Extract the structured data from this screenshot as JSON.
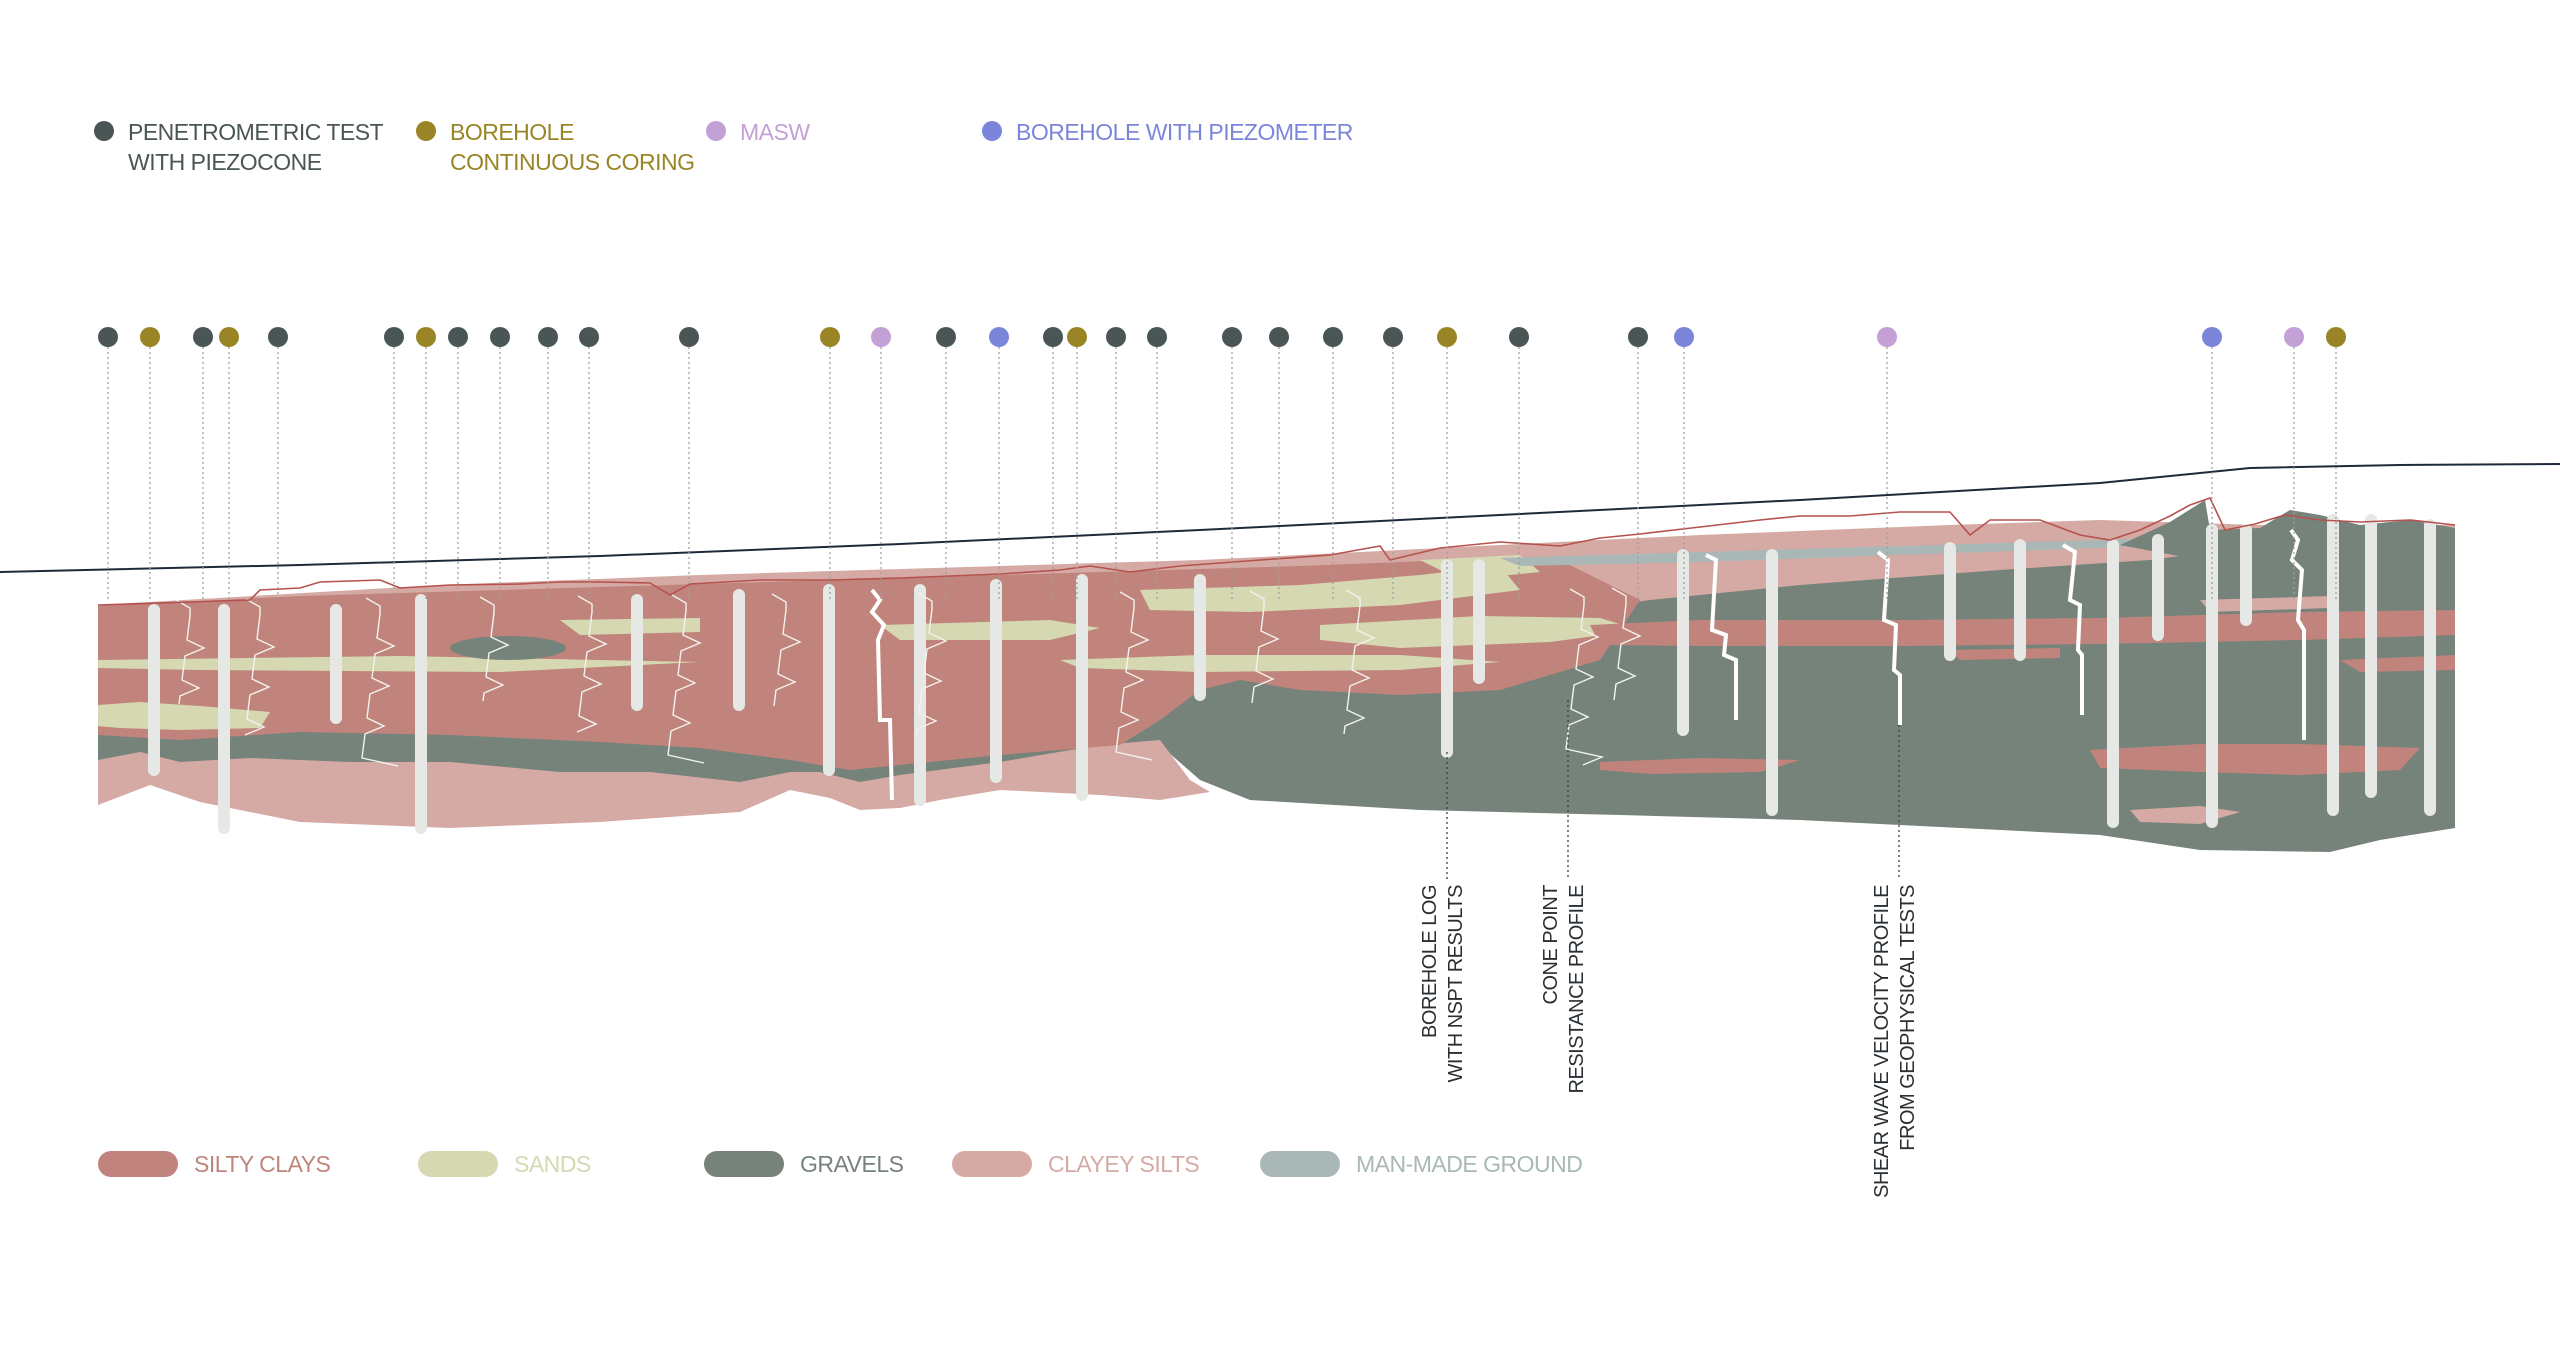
{
  "colors": {
    "penetrometric": "#4a5556",
    "borehole_coring": "#9a8526",
    "masw": "#c3a0d6",
    "piezometer": "#7b86db",
    "silty_clays": "#c0847c",
    "sands": "#d6d8b2",
    "gravels": "#76837a",
    "clayey_silts": "#d6aaa4",
    "man_made_ground": "#a9b8b6",
    "surface_line": "#1f2a38",
    "red_line": "#b5524e",
    "probe": "#e6e8e6"
  },
  "top_legend": [
    {
      "id": "penetrometric",
      "lines": [
        "PENETROMETRIC TEST",
        "WITH PIEZOCONE"
      ]
    },
    {
      "id": "borehole_coring",
      "lines": [
        "BOREHOLE",
        "CONTINUOUS CORING"
      ]
    },
    {
      "id": "masw",
      "lines": [
        "MASW"
      ]
    },
    {
      "id": "piezometer",
      "lines": [
        "BOREHOLE WITH PIEZOMETER"
      ]
    }
  ],
  "test_points": [
    "penetrometric",
    "borehole_coring",
    "penetrometric",
    "borehole_coring",
    "penetrometric",
    "penetrometric",
    "borehole_coring",
    "penetrometric",
    "penetrometric",
    "penetrometric",
    "penetrometric",
    "penetrometric",
    "borehole_coring",
    "masw",
    "penetrometric",
    "piezometer",
    "penetrometric",
    "borehole_coring",
    "penetrometric",
    "penetrometric",
    "penetrometric",
    "penetrometric",
    "penetrometric",
    "penetrometric",
    "borehole_coring",
    "penetrometric",
    "penetrometric",
    "piezometer",
    "masw",
    "piezometer",
    "masw",
    "borehole_coring"
  ],
  "callouts": [
    {
      "id": "borehole-log",
      "lines": [
        "BOREHOLE LOG",
        "WITH NSPT RESULTS"
      ]
    },
    {
      "id": "cone-point",
      "lines": [
        "CONE POINT",
        "RESISTANCE PROFILE"
      ]
    },
    {
      "id": "shear-wave",
      "lines": [
        "SHEAR WAVE VELOCITY PROFILE",
        "FROM GEOPHYSICAL TESTS"
      ]
    }
  ],
  "bottom_legend": [
    {
      "id": "silty_clays",
      "label": "SILTY CLAYS"
    },
    {
      "id": "sands",
      "label": "SANDS"
    },
    {
      "id": "gravels",
      "label": "GRAVELS"
    },
    {
      "id": "clayey_silts",
      "label": "CLAYEY SILTS"
    },
    {
      "id": "man_made_ground",
      "label": "MAN-MADE GROUND"
    }
  ]
}
